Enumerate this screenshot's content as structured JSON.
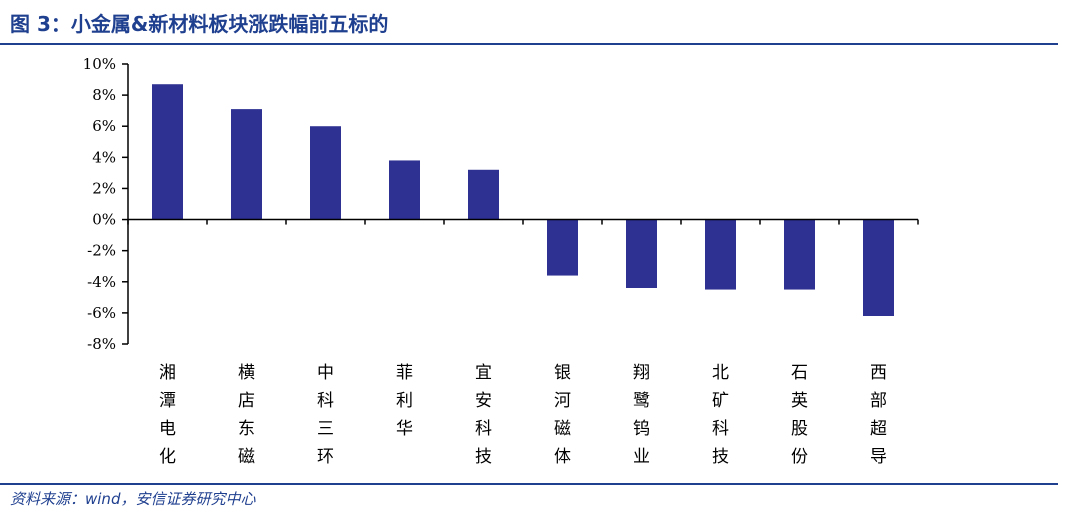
{
  "figure": {
    "title": "图 3：小金属&新材料板块涨跌幅前五标的",
    "source": "资料来源：wind，安信证券研究中心"
  },
  "chart_data": {
    "type": "bar",
    "categories": [
      "湘潭电化",
      "横店东磁",
      "中科三环",
      "菲利华",
      "宜安科技",
      "银河磁体",
      "翔鹭钨业",
      "北矿科技",
      "石英股份",
      "西部超导"
    ],
    "values": [
      8.7,
      7.1,
      6.0,
      3.8,
      3.2,
      -3.6,
      -4.4,
      -4.5,
      -4.5,
      -6.2
    ],
    "ylim": [
      -8,
      10
    ],
    "yticks": [
      10,
      8,
      6,
      4,
      2,
      0,
      -2,
      -4,
      -6,
      -8
    ],
    "ytick_labels": [
      "10%",
      "8%",
      "6%",
      "4%",
      "2%",
      "0%",
      "-2%",
      "-4%",
      "-6%",
      "-8%"
    ],
    "xlabel": "",
    "ylabel": "",
    "bar_color": "#2e3192",
    "legend": "none",
    "grid": false
  }
}
